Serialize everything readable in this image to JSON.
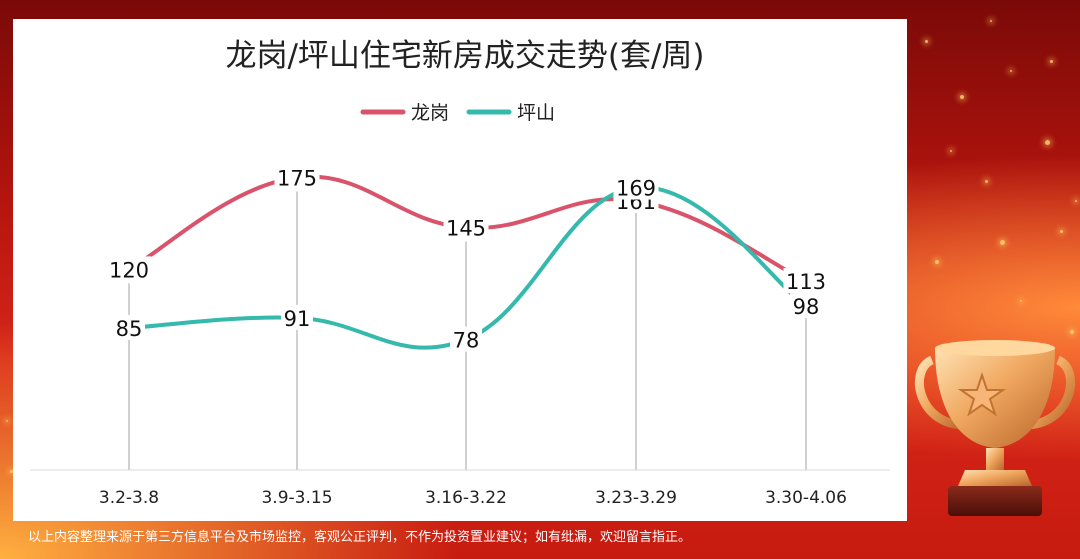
{
  "chart_data": {
    "type": "line",
    "title": "龙岗/坪山住宅新房成交走势(套/周)",
    "categories": [
      "3.2-3.8",
      "3.9-3.15",
      "3.16-3.22",
      "3.23-3.29",
      "3.30-4.06"
    ],
    "series": [
      {
        "name": "龙岗",
        "values": [
          120,
          175,
          145,
          161,
          113
        ],
        "color": "#d9536a"
      },
      {
        "name": "坪山",
        "values": [
          85,
          91,
          78,
          169,
          98
        ],
        "color": "#35b9ad"
      }
    ],
    "ylim": [
      0,
      210
    ],
    "legend_position": "top-center",
    "grid": false
  },
  "footnote": "以上内容整理来源于第三方信息平台及市场监控，客观公正评判，不作为投资置业建议；如有纰漏，欢迎留言指正。",
  "decoration": {
    "trophy_icon": "trophy-icon",
    "background_color": "#c71b10"
  }
}
